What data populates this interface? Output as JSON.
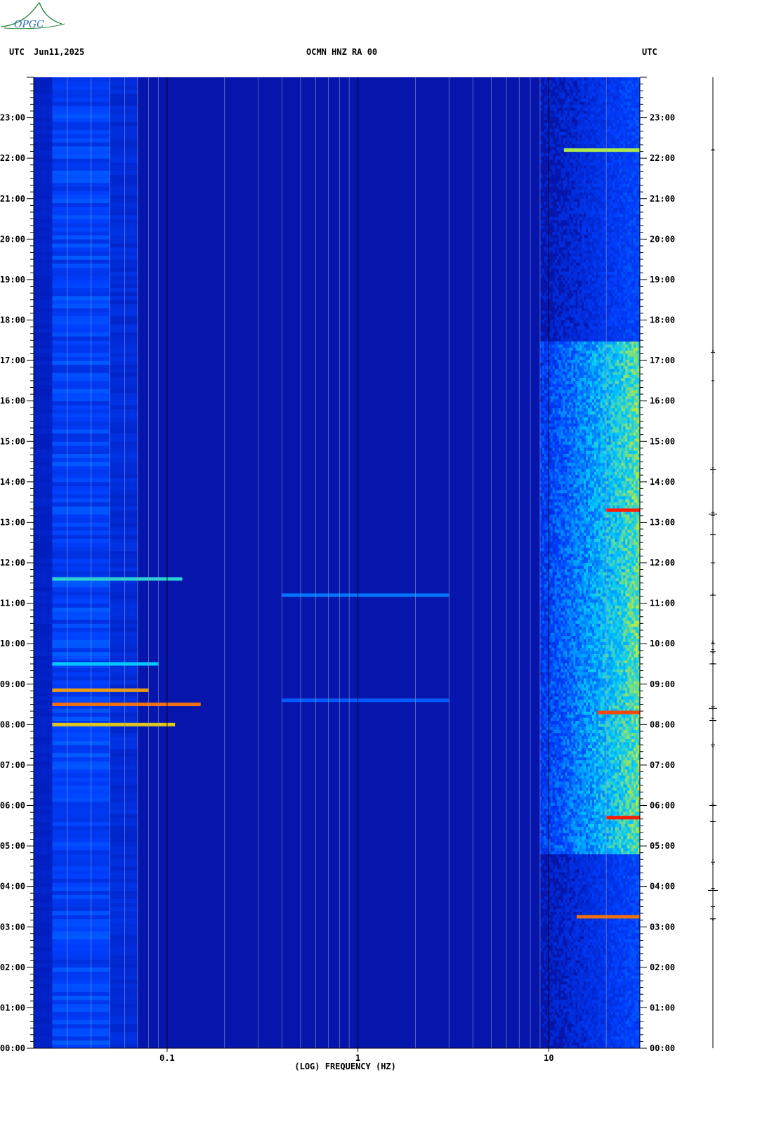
{
  "header": {
    "left_tz": "UTC",
    "date": "Jun11,2025",
    "station": "OCMN HNZ RA 00",
    "right_tz": "UTC"
  },
  "logo": {
    "text": "OPGC",
    "color": "#2a8a3a"
  },
  "chart_data": {
    "type": "heatmap",
    "title": "OCMN HNZ RA 00",
    "xlabel": "(LOG) FREQUENCY (HZ)",
    "xscale": "log",
    "xlim": [
      0.02,
      30
    ],
    "x_tick_labels": [
      {
        "value": 0.1,
        "label": "0.1"
      },
      {
        "value": 1,
        "label": "1"
      },
      {
        "value": 10,
        "label": "10"
      }
    ],
    "y_unit": "hours UTC",
    "ylim": [
      0,
      24
    ],
    "y_tick_labels": [
      "00:00",
      "01:00",
      "02:00",
      "03:00",
      "04:00",
      "05:00",
      "06:00",
      "07:00",
      "08:00",
      "09:00",
      "10:00",
      "11:00",
      "12:00",
      "13:00",
      "14:00",
      "15:00",
      "16:00",
      "17:00",
      "18:00",
      "19:00",
      "20:00",
      "21:00",
      "22:00",
      "23:00"
    ],
    "colormap": [
      "#0012a8",
      "#0040ff",
      "#00c8ff",
      "#d8f020",
      "#ff1a00"
    ],
    "background_color": "#0616ac",
    "low_frequency_band_hz": [
      0.025,
      0.05
    ],
    "high_frequency_activity": {
      "freq_start_hz": 9,
      "time_hours": [
        4.8,
        17.5
      ]
    },
    "events": [
      {
        "time_h": 8.0,
        "freq_range_hz": [
          0.025,
          0.11
        ],
        "level": 0.8
      },
      {
        "time_h": 8.5,
        "freq_range_hz": [
          0.025,
          0.15
        ],
        "level": 0.9
      },
      {
        "time_h": 8.85,
        "freq_range_hz": [
          0.025,
          0.08
        ],
        "level": 0.85
      },
      {
        "time_h": 11.6,
        "freq_range_hz": [
          0.025,
          0.12
        ],
        "level": 0.55
      },
      {
        "time_h": 9.5,
        "freq_range_hz": [
          0.025,
          0.09
        ],
        "level": 0.5
      },
      {
        "time_h": 3.25,
        "freq_range_hz": [
          14,
          30
        ],
        "level": 0.9
      },
      {
        "time_h": 22.2,
        "freq_range_hz": [
          12,
          30
        ],
        "level": 0.7
      },
      {
        "time_h": 11.2,
        "freq_range_hz": [
          0.4,
          3
        ],
        "level": 0.35
      },
      {
        "time_h": 8.6,
        "freq_range_hz": [
          0.4,
          3
        ],
        "level": 0.3
      },
      {
        "time_h": 13.3,
        "freq_range_hz": [
          20,
          30
        ],
        "level": 1.0
      },
      {
        "time_h": 5.7,
        "freq_range_hz": [
          20,
          30
        ],
        "level": 1.0
      },
      {
        "time_h": 8.3,
        "freq_range_hz": [
          18,
          30
        ],
        "level": 0.95
      }
    ]
  }
}
